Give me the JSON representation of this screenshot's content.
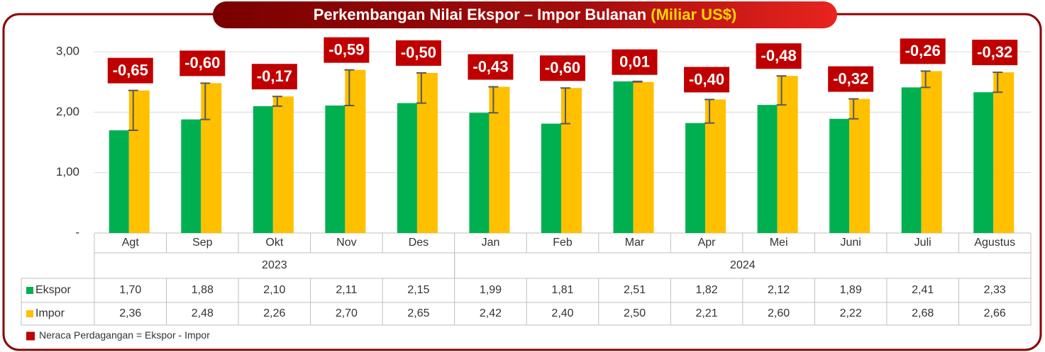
{
  "chart_data": {
    "type": "bar",
    "title": "Perkembangan Nilai Ekspor – Impor Bulanan",
    "unit": "(Miliar US$)",
    "categories": [
      "Agt",
      "Sep",
      "Okt",
      "Nov",
      "Des",
      "Jan",
      "Feb",
      "Mar",
      "Apr",
      "Mei",
      "Juni",
      "Juli",
      "Agustus"
    ],
    "year_groups": [
      {
        "name": "2023",
        "months": 5
      },
      {
        "name": "2024",
        "months": 8
      }
    ],
    "series": [
      {
        "name": "Ekspor",
        "color": "#00b050",
        "values": [
          1.7,
          1.88,
          2.1,
          2.11,
          2.15,
          1.99,
          1.81,
          2.51,
          1.82,
          2.12,
          1.89,
          2.41,
          2.33
        ],
        "value_labels": [
          "1,70",
          "1,88",
          "2,10",
          "2,11",
          "2,15",
          "1,99",
          "1,81",
          "2,51",
          "1,82",
          "2,12",
          "1,89",
          "2,41",
          "2,33"
        ]
      },
      {
        "name": "Impor",
        "color": "#ffc000",
        "values": [
          2.36,
          2.48,
          2.26,
          2.7,
          2.65,
          2.42,
          2.4,
          2.5,
          2.21,
          2.6,
          2.22,
          2.68,
          2.66
        ],
        "value_labels": [
          "2,36",
          "2,48",
          "2,26",
          "2,70",
          "2,65",
          "2,42",
          "2,40",
          "2,50",
          "2,21",
          "2,60",
          "2,22",
          "2,68",
          "2,66"
        ]
      },
      {
        "name": "Neraca Perdagangan = Ekspor - Impor",
        "color": "#c00000",
        "values": [
          -0.65,
          -0.6,
          -0.17,
          -0.59,
          -0.5,
          -0.43,
          -0.6,
          0.01,
          -0.4,
          -0.48,
          -0.32,
          -0.26,
          -0.32
        ],
        "value_labels": [
          "-0,65",
          "-0,60",
          "-0,17",
          "-0,59",
          "-0,50",
          "-0,43",
          "-0,60",
          "0,01",
          "-0,40",
          "-0,48",
          "-0,32",
          "-0,26",
          "-0,32"
        ]
      }
    ],
    "ylim": [
      0,
      3.2
    ],
    "yticks": [
      {
        "value": 0,
        "label": "-"
      },
      {
        "value": 1,
        "label": "1,00"
      },
      {
        "value": 2,
        "label": "2,00"
      },
      {
        "value": 3,
        "label": "3,00"
      }
    ],
    "grid": true
  }
}
